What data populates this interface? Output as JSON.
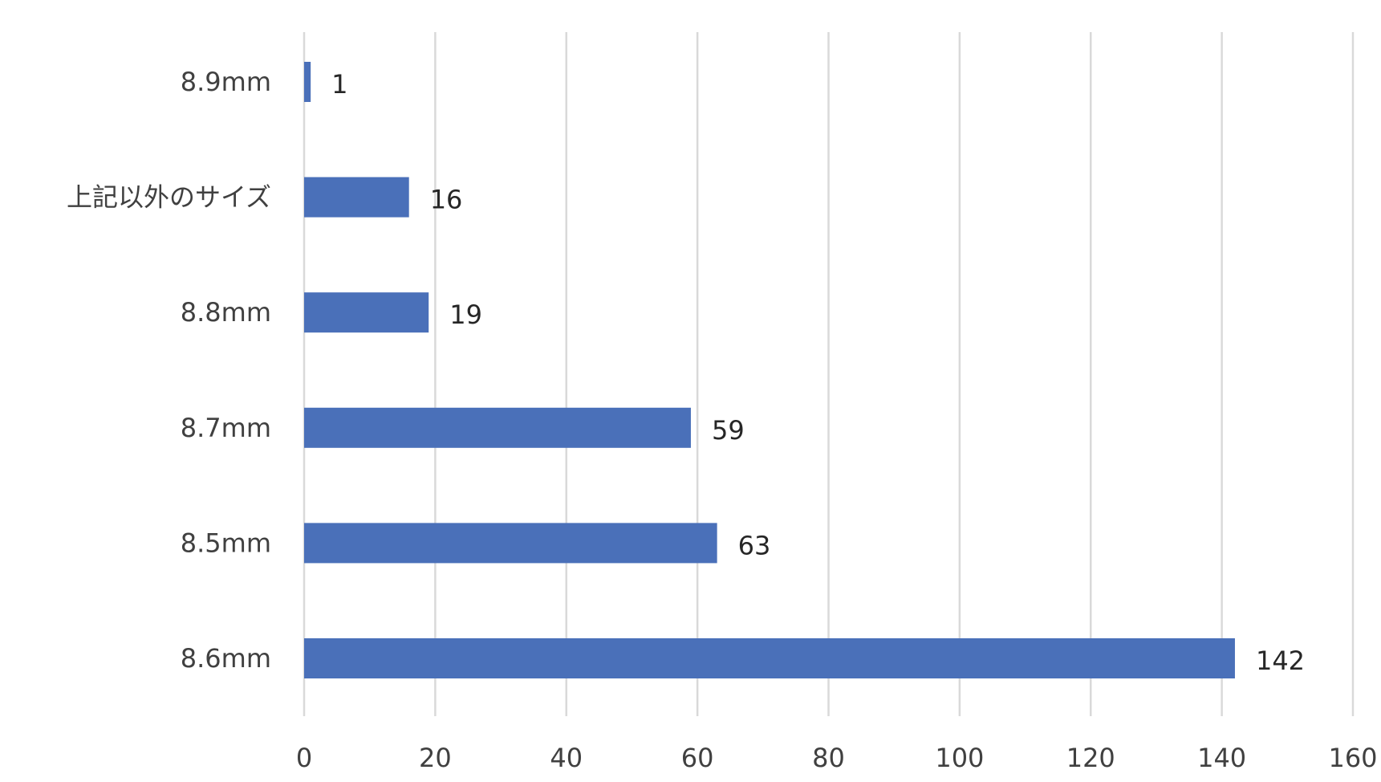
{
  "chart_data": {
    "type": "bar",
    "orientation": "horizontal",
    "title": "",
    "xlabel": "",
    "ylabel": "",
    "categories": [
      "8.9mm",
      "上記以外のサイズ",
      "8.8mm",
      "8.7mm",
      "8.5mm",
      "8.6mm"
    ],
    "values": [
      1,
      16,
      19,
      59,
      63,
      142
    ],
    "xlim": [
      0,
      160
    ],
    "ticks": [
      "0",
      "20",
      "40",
      "60",
      "80",
      "100",
      "120",
      "140",
      "160"
    ],
    "tick_values": [
      0,
      20,
      40,
      60,
      80,
      100,
      120,
      140,
      160
    ],
    "grid": true,
    "legend": "none",
    "data_labels": true,
    "bar_color": "#4a70b9"
  }
}
